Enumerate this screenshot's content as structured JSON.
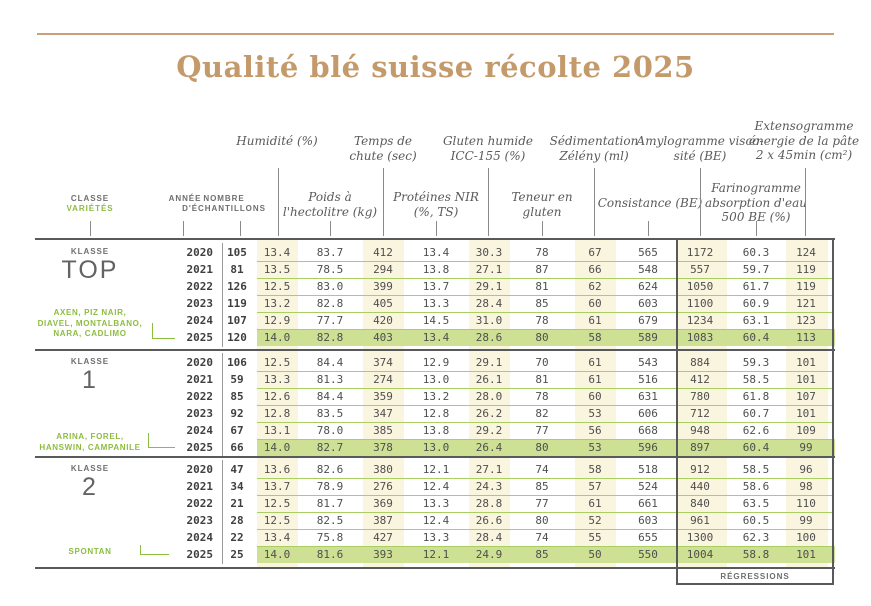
{
  "title": "Qualité blé suisse récolte 2025",
  "colors": {
    "accent_green": "#8cbd3f",
    "highlight_row_green": "#cde094",
    "cream_column": "#f9f5df",
    "title_tan": "#c49a6b",
    "dark_line": "#58595b",
    "row_separator_green": "#abce62"
  },
  "left_headers": {
    "classe": "CLASSE",
    "varietes": "VARIÉTÉS",
    "annee": "ANNÉE",
    "nombre": "NOMBRE\nD'ÉCHANTILLONS"
  },
  "column_headers": {
    "upper": [
      "Humidité (%)",
      "Temps de\nchute (sec)",
      "Gluten humide\nICC-155 (%)",
      "Sédimentation\nZélény (ml)",
      "Amylogramme visco-\nsité (BE)",
      "Extensogramme\nénergie de la pâte\n2 x 45min (cm²)"
    ],
    "lower": [
      "Poids à\nl'hectolitre (kg)",
      "Protéines NIR\n(%, TS)",
      "Teneur en\ngluten",
      "Consistance (BE)",
      "Farinogramme\nabsorption d'eau\n500 BE (%)"
    ]
  },
  "regressions_label": "RÉGRESSIONS",
  "blocks": [
    {
      "classe_label": "KLASSE",
      "classe_name": "TOP",
      "varieties": "AXEN, PIZ NAIR,\nDIAVEL, MONTALBANO,\nNARA, CADLIMO",
      "rows": [
        {
          "year": "2020",
          "n": "105",
          "highlight": false,
          "values": [
            "13.4",
            "83.7",
            "412",
            "13.4",
            "30.3",
            "78",
            "67",
            "565",
            "1172",
            "60.3",
            "124"
          ]
        },
        {
          "year": "2021",
          "n": "81",
          "highlight": false,
          "values": [
            "13.5",
            "78.5",
            "294",
            "13.8",
            "27.1",
            "87",
            "66",
            "548",
            "557",
            "59.7",
            "119"
          ]
        },
        {
          "year": "2022",
          "n": "126",
          "highlight": false,
          "values": [
            "12.5",
            "83.0",
            "399",
            "13.7",
            "29.1",
            "81",
            "62",
            "624",
            "1050",
            "61.7",
            "119"
          ]
        },
        {
          "year": "2023",
          "n": "119",
          "highlight": false,
          "values": [
            "13.2",
            "82.8",
            "405",
            "13.3",
            "28.4",
            "85",
            "60",
            "603",
            "1100",
            "60.9",
            "121"
          ]
        },
        {
          "year": "2024",
          "n": "107",
          "highlight": false,
          "values": [
            "12.9",
            "77.7",
            "420",
            "14.5",
            "31.0",
            "78",
            "61",
            "679",
            "1234",
            "63.1",
            "123"
          ]
        },
        {
          "year": "2025",
          "n": "120",
          "highlight": true,
          "values": [
            "14.0",
            "82.8",
            "403",
            "13.4",
            "28.6",
            "80",
            "58",
            "589",
            "1083",
            "60.4",
            "113"
          ]
        }
      ]
    },
    {
      "classe_label": "KLASSE",
      "classe_name": "1",
      "varieties": "ARINA, FOREL,\nHANSWIN, CAMPANILE",
      "rows": [
        {
          "year": "2020",
          "n": "106",
          "highlight": false,
          "values": [
            "12.5",
            "84.4",
            "374",
            "12.9",
            "29.1",
            "70",
            "61",
            "543",
            "884",
            "59.3",
            "101"
          ]
        },
        {
          "year": "2021",
          "n": "59",
          "highlight": false,
          "values": [
            "13.3",
            "81.3",
            "274",
            "13.0",
            "26.1",
            "81",
            "61",
            "516",
            "412",
            "58.5",
            "101"
          ]
        },
        {
          "year": "2022",
          "n": "85",
          "highlight": false,
          "values": [
            "12.6",
            "84.4",
            "359",
            "13.2",
            "28.0",
            "78",
            "60",
            "631",
            "780",
            "61.8",
            "107"
          ]
        },
        {
          "year": "2023",
          "n": "92",
          "highlight": false,
          "values": [
            "12.8",
            "83.5",
            "347",
            "12.8",
            "26.2",
            "82",
            "53",
            "606",
            "712",
            "60.7",
            "101"
          ]
        },
        {
          "year": "2024",
          "n": "67",
          "highlight": false,
          "values": [
            "13.1",
            "78.0",
            "385",
            "13.8",
            "29.2",
            "77",
            "56",
            "668",
            "948",
            "62.6",
            "109"
          ]
        },
        {
          "year": "2025",
          "n": "66",
          "highlight": true,
          "values": [
            "14.0",
            "82.7",
            "378",
            "13.0",
            "26.4",
            "80",
            "53",
            "596",
            "897",
            "60.4",
            "99"
          ]
        }
      ]
    },
    {
      "classe_label": "KLASSE",
      "classe_name": "2",
      "varieties": "SPONTAN",
      "rows": [
        {
          "year": "2020",
          "n": "47",
          "highlight": false,
          "values": [
            "13.6",
            "82.6",
            "380",
            "12.1",
            "27.1",
            "74",
            "58",
            "518",
            "912",
            "58.5",
            "96"
          ]
        },
        {
          "year": "2021",
          "n": "34",
          "highlight": false,
          "values": [
            "13.7",
            "78.9",
            "276",
            "12.4",
            "24.3",
            "85",
            "57",
            "524",
            "440",
            "58.6",
            "98"
          ]
        },
        {
          "year": "2022",
          "n": "21",
          "highlight": false,
          "values": [
            "12.5",
            "81.7",
            "369",
            "13.3",
            "28.8",
            "77",
            "61",
            "661",
            "840",
            "63.5",
            "110"
          ]
        },
        {
          "year": "2023",
          "n": "28",
          "highlight": false,
          "values": [
            "12.5",
            "82.5",
            "387",
            "12.4",
            "26.6",
            "80",
            "52",
            "603",
            "961",
            "60.5",
            "99"
          ]
        },
        {
          "year": "2024",
          "n": "22",
          "highlight": false,
          "values": [
            "13.4",
            "75.8",
            "427",
            "13.3",
            "28.4",
            "74",
            "55",
            "655",
            "1300",
            "62.3",
            "100"
          ]
        },
        {
          "year": "2025",
          "n": "25",
          "highlight": true,
          "values": [
            "14.0",
            "81.6",
            "393",
            "12.1",
            "24.9",
            "85",
            "50",
            "550",
            "1004",
            "58.8",
            "101"
          ]
        }
      ]
    }
  ]
}
